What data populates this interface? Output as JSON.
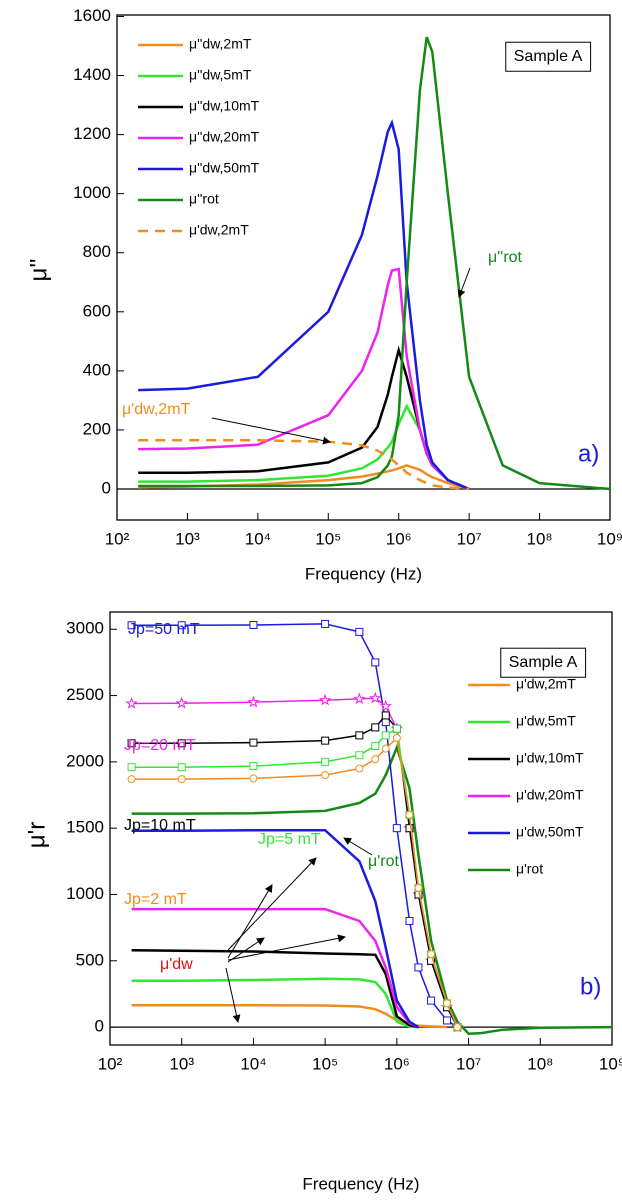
{
  "chart_data": [
    {
      "type": "line",
      "xscale": "log",
      "x_label": "Frequency (Hz)",
      "y_label": "μ''",
      "legend": "upper left",
      "xlim": [
        100,
        1000000000
      ],
      "ylim": [
        -105,
        1605
      ],
      "xticks": [
        {
          "value": 100,
          "label": "10²"
        },
        {
          "value": 1000,
          "label": "10³"
        },
        {
          "value": 10000,
          "label": "10⁴"
        },
        {
          "value": 100000,
          "label": "10⁵"
        },
        {
          "value": 1000000,
          "label": "10⁶"
        },
        {
          "value": 10000000,
          "label": "10⁷"
        },
        {
          "value": 100000000,
          "label": "10⁸"
        },
        {
          "value": 1000000000,
          "label": "10⁹"
        }
      ],
      "yticks": [
        0,
        200,
        400,
        600,
        800,
        1000,
        1200,
        1400,
        1600
      ],
      "annotations": [
        "Sample A",
        "a)",
        "μ''rot",
        "μ'dw,2mT"
      ],
      "x": [
        200,
        1000,
        10000,
        100000,
        300000,
        500000,
        700000,
        800000,
        1000000,
        1300000,
        2000000,
        2500000,
        3000000,
        5000000,
        10000000,
        30000000,
        100000000,
        1000000000
      ],
      "series": [
        {
          "name": "μ''dw,2mT",
          "color": "#f28c1e",
          "values": [
            5,
            8,
            15,
            30,
            42,
            52,
            60,
            63,
            70,
            80,
            65,
            50,
            40,
            20,
            0,
            null,
            null,
            null
          ]
        },
        {
          "name": "μ''dw,5mT",
          "color": "#33e633",
          "values": [
            25,
            25,
            30,
            45,
            70,
            100,
            140,
            160,
            220,
            280,
            200,
            120,
            80,
            30,
            0,
            null,
            null,
            null
          ]
        },
        {
          "name": "μ''dw,10mT",
          "color": "#000000",
          "values": [
            55,
            55,
            60,
            90,
            140,
            210,
            320,
            380,
            470,
            380,
            200,
            120,
            80,
            30,
            0,
            null,
            null,
            null
          ]
        },
        {
          "name": "μ''dw,20mT",
          "color": "#ee22ee",
          "values": [
            135,
            137,
            150,
            250,
            400,
            530,
            690,
            740,
            745,
            450,
            200,
            120,
            80,
            30,
            0,
            null,
            null,
            null
          ]
        },
        {
          "name": "μ''dw,50mT",
          "color": "#1a1ae0",
          "values": [
            335,
            340,
            380,
            600,
            860,
            1060,
            1210,
            1240,
            1150,
            700,
            300,
            150,
            90,
            30,
            0,
            null,
            null,
            null
          ]
        },
        {
          "name": "μ''rot",
          "color": "#138a13",
          "values": [
            10,
            10,
            10,
            12,
            20,
            40,
            80,
            110,
            250,
            700,
            1350,
            1530,
            1480,
            1000,
            380,
            80,
            20,
            0
          ]
        },
        {
          "name": "μ'dw,2mT",
          "color": "#f28c1e",
          "dashed": true,
          "values": [
            165,
            165,
            165,
            160,
            148,
            130,
            110,
            100,
            80,
            55,
            30,
            20,
            12,
            5,
            0,
            null,
            null,
            null
          ]
        }
      ]
    },
    {
      "type": "line",
      "xscale": "log",
      "x_label": "Frequency (Hz)",
      "y_label": "μ'r",
      "legend": "right",
      "xlim": [
        100,
        1000000000
      ],
      "ylim": [
        -135,
        3130
      ],
      "xticks": [
        {
          "value": 100,
          "label": "10²"
        },
        {
          "value": 1000,
          "label": "10³"
        },
        {
          "value": 10000,
          "label": "10⁴"
        },
        {
          "value": 100000,
          "label": "10⁵"
        },
        {
          "value": 1000000,
          "label": "10⁶"
        },
        {
          "value": 10000000,
          "label": "10⁷"
        },
        {
          "value": 100000000,
          "label": "10⁸"
        },
        {
          "value": 1000000000,
          "label": "10⁹"
        }
      ],
      "yticks": [
        0,
        500,
        1000,
        1500,
        2000,
        2500,
        3000
      ],
      "annotations": [
        "Sample A",
        "b)",
        "μ'rot",
        "μ'dw"
      ],
      "x": [
        200,
        1000,
        10000,
        100000,
        300000,
        500000,
        700000,
        1000000,
        1500000,
        2000000,
        3000000,
        5000000,
        7000000,
        10000000,
        15000000,
        30000000,
        100000000,
        1000000000
      ],
      "series": [
        {
          "name": "μ'dw,2mT",
          "color": "#f28c1e",
          "values": [
            165,
            165,
            165,
            163,
            155,
            135,
            100,
            50,
            20,
            10,
            5,
            0,
            null,
            null,
            null,
            null,
            null,
            null
          ]
        },
        {
          "name": "μ'dw,5mT",
          "color": "#33e633",
          "values": [
            350,
            350,
            355,
            365,
            360,
            340,
            250,
            40,
            5,
            0,
            null,
            null,
            null,
            null,
            null,
            null,
            null,
            null
          ]
        },
        {
          "name": "μ'dw,10mT",
          "color": "#000000",
          "values": [
            580,
            575,
            570,
            555,
            550,
            545,
            400,
            80,
            15,
            0,
            null,
            null,
            null,
            null,
            null,
            null,
            null,
            null
          ]
        },
        {
          "name": "μ'dw,20mT",
          "color": "#ee22ee",
          "values": [
            890,
            890,
            890,
            890,
            800,
            650,
            450,
            150,
            30,
            0,
            null,
            null,
            null,
            null,
            null,
            null,
            null,
            null
          ]
        },
        {
          "name": "μ'dw,50mT",
          "color": "#1a1ae0",
          "values": [
            1480,
            1480,
            1485,
            1485,
            1250,
            950,
            600,
            200,
            40,
            0,
            null,
            null,
            null,
            null,
            null,
            null,
            null,
            null
          ]
        },
        {
          "name": "μ'rot",
          "color": "#138a13",
          "values": [
            1610,
            1610,
            1612,
            1630,
            1690,
            1760,
            1900,
            2110,
            1800,
            1300,
            650,
            200,
            40,
            -50,
            -45,
            -20,
            -5,
            0
          ]
        },
        {
          "name": "Jp=50 mT",
          "color": "#1a1ae0",
          "in_legend": false,
          "marker": "square",
          "values": [
            3030,
            3030,
            3032,
            3040,
            2980,
            2750,
            2300,
            1500,
            800,
            450,
            200,
            50,
            0,
            null,
            null,
            null,
            null,
            null
          ]
        },
        {
          "name": "Jp=20 mT",
          "color": "#ee22ee",
          "in_legend": false,
          "marker": "star",
          "values": [
            2440,
            2442,
            2450,
            2465,
            2475,
            2480,
            2420,
            2250,
            1500,
            1000,
            500,
            150,
            0,
            null,
            null,
            null,
            null,
            null
          ]
        },
        {
          "name": "Jp=10 mT",
          "color": "#000000",
          "in_legend": false,
          "marker": "square",
          "values": [
            2140,
            2140,
            2145,
            2160,
            2200,
            2260,
            2350,
            2250,
            1500,
            1000,
            500,
            150,
            0,
            null,
            null,
            null,
            null,
            null
          ]
        },
        {
          "name": "Jp=5 mT",
          "color": "#33e633",
          "in_legend": false,
          "marker": "square",
          "values": [
            1960,
            1960,
            1968,
            2000,
            2050,
            2120,
            2200,
            2250,
            1600,
            1050,
            550,
            180,
            0,
            null,
            null,
            null,
            null,
            null
          ]
        },
        {
          "name": "Jp=2 mT",
          "color": "#f28c1e",
          "in_legend": false,
          "marker": "circle",
          "values": [
            1870,
            1870,
            1875,
            1900,
            1950,
            2020,
            2100,
            2180,
            1600,
            1050,
            550,
            180,
            0,
            null,
            null,
            null,
            null,
            null
          ]
        }
      ]
    }
  ]
}
